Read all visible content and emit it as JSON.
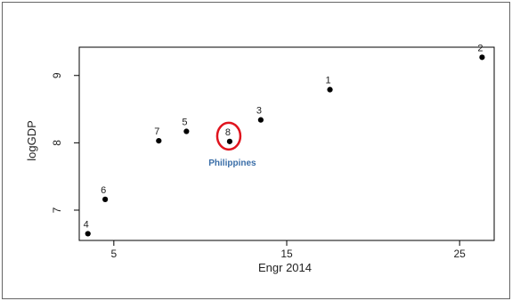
{
  "chart_data": {
    "type": "scatter",
    "xlabel": "Engr 2014",
    "ylabel": "logGDP",
    "xlim": [
      3,
      27
    ],
    "ylim": [
      6.55,
      9.42
    ],
    "x_ticks": [
      5,
      15,
      25
    ],
    "y_ticks": [
      7,
      8,
      9
    ],
    "grid": false,
    "points": [
      {
        "label": "1",
        "x": 17.5,
        "y": 8.79
      },
      {
        "label": "2",
        "x": 26.3,
        "y": 9.27
      },
      {
        "label": "3",
        "x": 13.5,
        "y": 8.34
      },
      {
        "label": "4",
        "x": 3.5,
        "y": 6.65
      },
      {
        "label": "5",
        "x": 9.2,
        "y": 8.17
      },
      {
        "label": "6",
        "x": 4.5,
        "y": 7.16
      },
      {
        "label": "7",
        "x": 7.6,
        "y": 8.03
      },
      {
        "label": "8",
        "x": 11.7,
        "y": 8.02
      }
    ],
    "annotation": {
      "point_label": "8",
      "text": "Philippines",
      "marker_color": "#e0141e",
      "text_color": "#3a6ea8"
    }
  }
}
